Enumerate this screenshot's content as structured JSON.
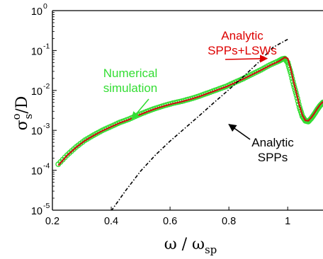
{
  "chart_data": {
    "type": "line",
    "title": "",
    "xlabel": "ω / ω",
    "xlabel_sub": "sp",
    "ylabel_main": "σ",
    "ylabel_sup": "o",
    "ylabel_sub": "s",
    "ylabel_tail": "/D",
    "xlim": [
      0.2,
      1.12
    ],
    "ylim_log10": [
      -5,
      0
    ],
    "y_scale": "log",
    "x_ticks": [
      "0.2",
      "0.4",
      "0.6",
      "0.8",
      "1"
    ],
    "x_tick_values": [
      0.2,
      0.4,
      0.6,
      0.8,
      1.0
    ],
    "y_tick_base": "10",
    "y_tick_exponents": [
      "0",
      "-1",
      "-2",
      "-3",
      "-4",
      "-5"
    ],
    "y_tick_values": [
      0,
      -1,
      -2,
      -3,
      -4,
      -5
    ],
    "grid": false,
    "series": [
      {
        "name": "Numerical simulation",
        "color": "#33dd33",
        "marker": "circle",
        "x": [
          0.22,
          0.25,
          0.28,
          0.31,
          0.34,
          0.37,
          0.4,
          0.43,
          0.46,
          0.49,
          0.52,
          0.55,
          0.58,
          0.61,
          0.64,
          0.67,
          0.7,
          0.73,
          0.76,
          0.79,
          0.82,
          0.85,
          0.88,
          0.91,
          0.94,
          0.97,
          0.98,
          0.99,
          1.0,
          1.01,
          1.02,
          1.03,
          1.04,
          1.05,
          1.06,
          1.07,
          1.08,
          1.09,
          1.1,
          1.11,
          1.12
        ],
        "log10y": [
          -3.85,
          -3.62,
          -3.42,
          -3.25,
          -3.12,
          -3.0,
          -2.9,
          -2.8,
          -2.72,
          -2.62,
          -2.53,
          -2.45,
          -2.38,
          -2.32,
          -2.27,
          -2.21,
          -2.14,
          -2.06,
          -1.98,
          -1.9,
          -1.8,
          -1.7,
          -1.59,
          -1.48,
          -1.36,
          -1.26,
          -1.22,
          -1.2,
          -1.3,
          -1.55,
          -1.85,
          -2.12,
          -2.42,
          -2.65,
          -2.76,
          -2.78,
          -2.7,
          -2.6,
          -2.48,
          -2.38,
          -2.3
        ]
      },
      {
        "name": "Analytic SPPs+LSWs",
        "color": "#cc1111",
        "marker": "none",
        "x": [
          0.22,
          0.25,
          0.28,
          0.31,
          0.34,
          0.37,
          0.4,
          0.43,
          0.46,
          0.49,
          0.52,
          0.55,
          0.58,
          0.61,
          0.64,
          0.67,
          0.7,
          0.73,
          0.76,
          0.79,
          0.82,
          0.85,
          0.88,
          0.91,
          0.94,
          0.97,
          0.98,
          0.99,
          1.0,
          1.01,
          1.02,
          1.03,
          1.04,
          1.05,
          1.06,
          1.07,
          1.08,
          1.09,
          1.1,
          1.11,
          1.12
        ],
        "log10y": [
          -3.88,
          -3.63,
          -3.43,
          -3.26,
          -3.13,
          -3.01,
          -2.91,
          -2.81,
          -2.73,
          -2.63,
          -2.54,
          -2.46,
          -2.39,
          -2.33,
          -2.28,
          -2.22,
          -2.15,
          -2.07,
          -1.99,
          -1.91,
          -1.81,
          -1.71,
          -1.6,
          -1.49,
          -1.37,
          -1.27,
          -1.22,
          -1.17,
          -1.2,
          -1.45,
          -1.78,
          -2.07,
          -2.38,
          -2.62,
          -2.75,
          -2.76,
          -2.68,
          -2.58,
          -2.46,
          -2.36,
          -2.28
        ]
      },
      {
        "name": "Analytic SPPs",
        "color": "#000000",
        "marker": "none",
        "dash": "dashdot",
        "x": [
          0.4,
          0.45,
          0.5,
          0.55,
          0.6,
          0.65,
          0.7,
          0.75,
          0.8,
          0.85,
          0.9,
          0.95,
          1.0
        ],
        "log10y": [
          -5.02,
          -4.5,
          -4.02,
          -3.62,
          -3.27,
          -2.95,
          -2.63,
          -2.3,
          -1.98,
          -1.65,
          -1.3,
          -0.92,
          -0.72
        ]
      }
    ],
    "annotations": [
      {
        "lines": [
          "Analytic",
          "SPPs+LSWs"
        ],
        "color": "#dd0000",
        "arrow_to": [
          0.93,
          -1.2
        ]
      },
      {
        "lines": [
          "Numerical",
          "simulation"
        ],
        "color": "#33dd33",
        "arrow_to": [
          0.47,
          -2.72
        ]
      },
      {
        "lines": [
          "Analytic",
          "SPPs"
        ],
        "color": "#000000",
        "arrow_to": [
          0.8,
          -2.85
        ]
      }
    ]
  }
}
